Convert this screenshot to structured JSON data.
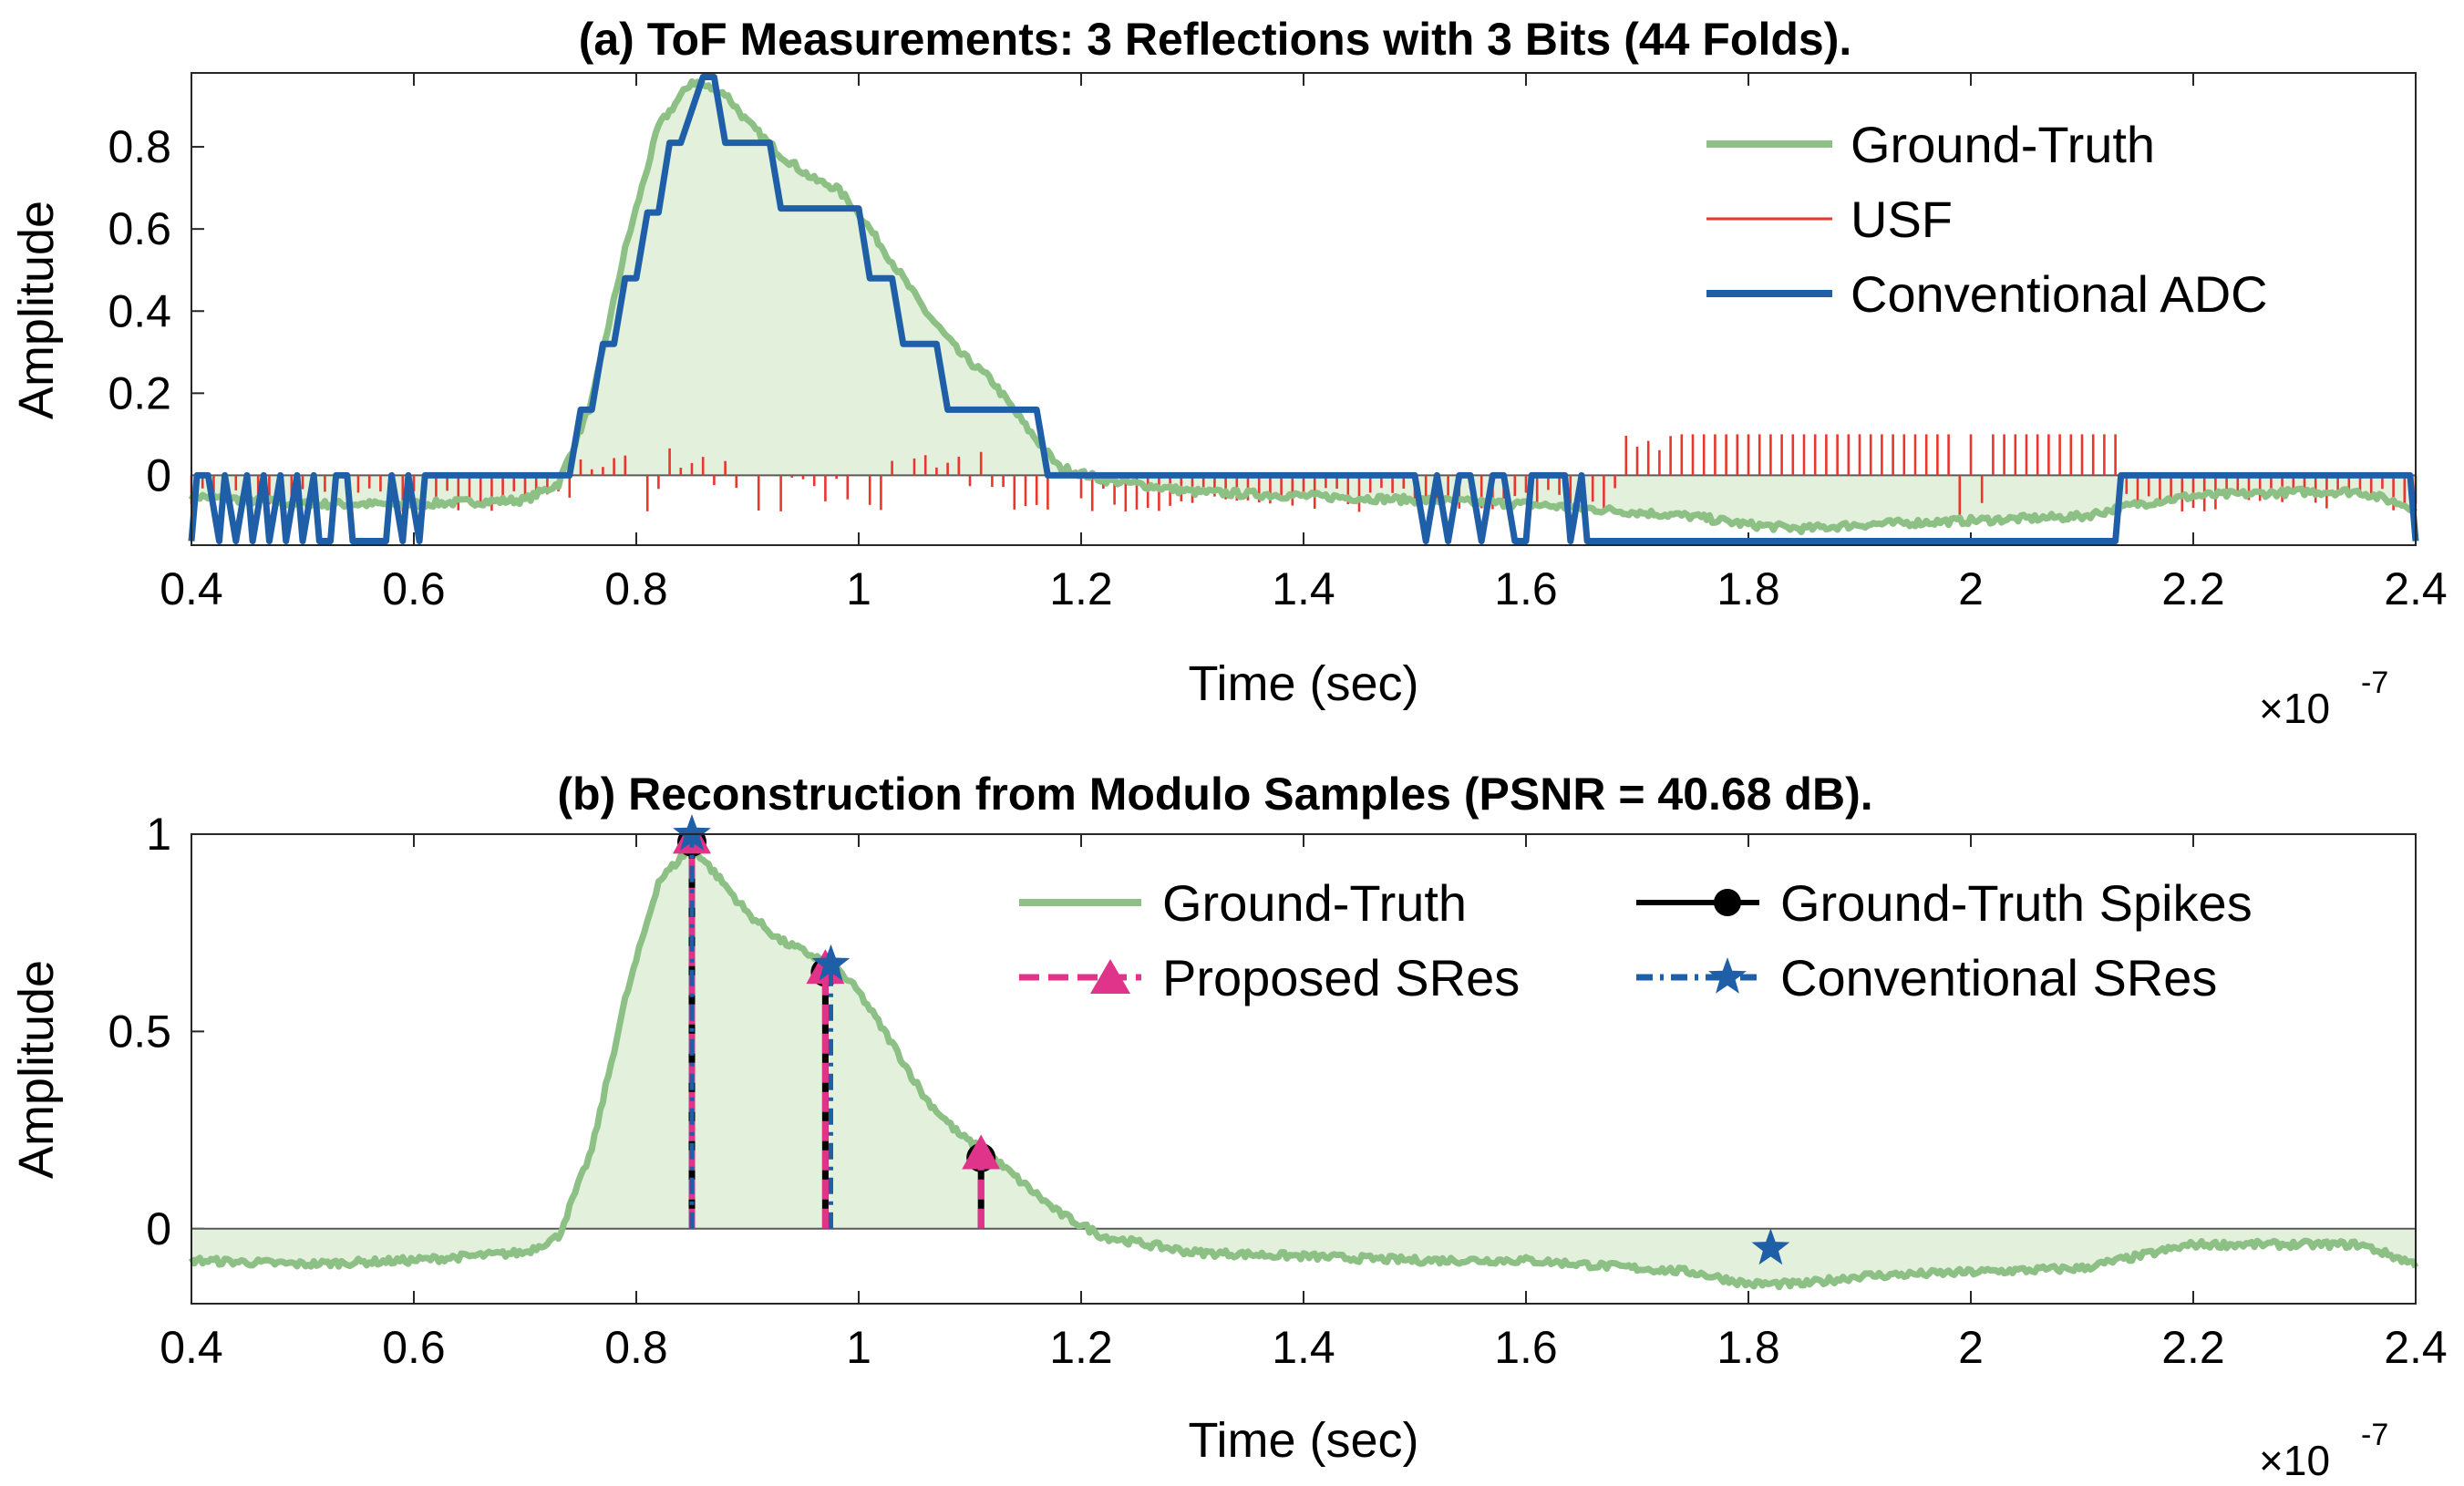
{
  "colors": {
    "ground_truth": "#8cc084",
    "ground_truth_fill": "#e2f0dc",
    "usf": "#e8372c",
    "conventional_adc": "#1f5fa8",
    "spikes": "#000000",
    "proposed": "#e0338a",
    "conventional_sres": "#1f5fa8"
  },
  "chart_data": [
    {
      "type": "line",
      "title": "(a) ToF Measurements: 3 Reflections with 3 Bits (44 Folds).",
      "xlabel": "Time (sec)",
      "ylabel": "Amplitude",
      "x_multiplier": "×10",
      "x_multiplier_exp": "-7",
      "xlim": [
        0.4,
        2.4
      ],
      "ylim": [
        -0.17,
        0.98
      ],
      "xticks": [
        "0.4",
        "0.6",
        "0.8",
        "1",
        "1.2",
        "1.4",
        "1.6",
        "1.8",
        "2",
        "2.2",
        "2.4"
      ],
      "yticks": [
        "0",
        "0.2",
        "0.4",
        "0.6",
        "0.8"
      ],
      "legend": [
        "Ground-Truth",
        "USF",
        "Conventional ADC"
      ],
      "legend_position": "top-right",
      "series": [
        {
          "name": "Ground-Truth",
          "x": [
            0.4,
            0.5,
            0.6,
            0.7,
            0.73,
            0.76,
            0.79,
            0.82,
            0.85,
            0.88,
            0.9,
            0.93,
            0.96,
            0.98,
            1.0,
            1.03,
            1.06,
            1.09,
            1.12,
            1.15,
            1.18,
            1.22,
            1.3,
            1.4,
            1.5,
            1.6,
            1.7,
            1.75,
            1.8,
            1.85,
            1.9,
            2.0,
            2.1,
            2.15,
            2.2,
            2.3,
            2.35,
            2.4
          ],
          "y": [
            -0.05,
            -0.07,
            -0.07,
            -0.06,
            -0.02,
            0.18,
            0.55,
            0.85,
            0.96,
            0.93,
            0.86,
            0.78,
            0.72,
            0.7,
            0.64,
            0.52,
            0.4,
            0.3,
            0.23,
            0.12,
            0.02,
            -0.01,
            -0.04,
            -0.05,
            -0.06,
            -0.07,
            -0.09,
            -0.1,
            -0.12,
            -0.13,
            -0.12,
            -0.11,
            -0.1,
            -0.07,
            -0.05,
            -0.04,
            -0.04,
            -0.08
          ]
        },
        {
          "name": "Conventional ADC",
          "x": [
            0.4,
            0.405,
            0.415,
            0.425,
            0.43,
            0.44,
            0.45,
            0.455,
            0.465,
            0.47,
            0.48,
            0.485,
            0.495,
            0.5,
            0.51,
            0.515,
            0.525,
            0.53,
            0.54,
            0.545,
            0.575,
            0.58,
            0.59,
            0.595,
            0.605,
            0.61,
            0.615,
            0.74,
            0.75,
            0.76,
            0.77,
            0.78,
            0.79,
            0.8,
            0.81,
            0.82,
            0.83,
            0.84,
            0.86,
            0.87,
            0.88,
            0.9,
            0.92,
            0.93,
            0.96,
            0.97,
            1.0,
            1.01,
            1.03,
            1.04,
            1.07,
            1.08,
            1.16,
            1.17,
            1.5,
            1.51,
            1.52,
            1.53,
            1.54,
            1.55,
            1.56,
            1.57,
            1.58,
            1.59,
            1.6,
            1.605,
            1.635,
            1.64,
            1.65,
            1.655,
            2.13,
            2.135,
            2.395,
            2.4
          ],
          "y": [
            -0.16,
            0.0,
            0.0,
            -0.16,
            0.0,
            -0.16,
            0.0,
            -0.16,
            0.0,
            -0.16,
            0.0,
            -0.16,
            0.0,
            -0.16,
            0.0,
            -0.16,
            -0.16,
            0.0,
            0.0,
            -0.16,
            -0.16,
            0.0,
            -0.16,
            0.0,
            -0.16,
            0.0,
            0.0,
            0.0,
            0.16,
            0.16,
            0.32,
            0.32,
            0.48,
            0.48,
            0.64,
            0.64,
            0.81,
            0.81,
            0.97,
            0.97,
            0.81,
            0.81,
            0.81,
            0.65,
            0.65,
            0.65,
            0.65,
            0.48,
            0.48,
            0.32,
            0.32,
            0.16,
            0.16,
            0.0,
            0.0,
            -0.16,
            0.0,
            -0.16,
            0.0,
            0.0,
            -0.16,
            0.0,
            0.0,
            -0.16,
            -0.16,
            0.0,
            0.0,
            -0.16,
            0.0,
            -0.16,
            -0.16,
            0.0,
            0.0,
            -0.16
          ]
        }
      ]
    },
    {
      "type": "line",
      "title": "(b) Reconstruction from Modulo Samples (PSNR = 40.68 dB).",
      "xlabel": "Time (sec)",
      "ylabel": "Amplitude",
      "x_multiplier": "×10",
      "x_multiplier_exp": "-7",
      "xlim": [
        0.4,
        2.4
      ],
      "ylim": [
        -0.19,
        1.0
      ],
      "xticks": [
        "0.4",
        "0.6",
        "0.8",
        "1",
        "1.2",
        "1.4",
        "1.6",
        "1.8",
        "2",
        "2.2",
        "2.4"
      ],
      "yticks": [
        "0",
        "0.5",
        "1"
      ],
      "legend": [
        "Ground-Truth",
        "Ground-Truth Spikes",
        "Proposed SRes",
        "Conventional SRes"
      ],
      "legend_position": "top-right",
      "series": [
        {
          "name": "Ground-Truth",
          "x": [
            0.4,
            0.5,
            0.6,
            0.7,
            0.73,
            0.76,
            0.79,
            0.82,
            0.85,
            0.88,
            0.9,
            0.93,
            0.96,
            0.98,
            1.0,
            1.03,
            1.06,
            1.09,
            1.12,
            1.15,
            1.18,
            1.22,
            1.3,
            1.4,
            1.5,
            1.6,
            1.7,
            1.75,
            1.8,
            1.85,
            1.9,
            2.0,
            2.1,
            2.15,
            2.2,
            2.3,
            2.35,
            2.4
          ],
          "y": [
            -0.08,
            -0.09,
            -0.08,
            -0.06,
            -0.02,
            0.2,
            0.58,
            0.88,
            0.97,
            0.87,
            0.8,
            0.73,
            0.69,
            0.66,
            0.6,
            0.47,
            0.33,
            0.24,
            0.18,
            0.11,
            0.04,
            -0.02,
            -0.06,
            -0.07,
            -0.08,
            -0.08,
            -0.1,
            -0.11,
            -0.14,
            -0.14,
            -0.12,
            -0.11,
            -0.1,
            -0.07,
            -0.04,
            -0.04,
            -0.04,
            -0.09
          ]
        },
        {
          "name": "Ground-Truth Spikes",
          "x": [
            0.85,
            0.97,
            1.11
          ],
          "y": [
            0.98,
            0.65,
            0.18
          ]
        },
        {
          "name": "Proposed SRes",
          "x": [
            0.85,
            0.97,
            1.11
          ],
          "y": [
            0.99,
            0.66,
            0.19
          ]
        },
        {
          "name": "Conventional SRes",
          "x": [
            0.85,
            0.975,
            1.82
          ],
          "y": [
            1.0,
            0.67,
            -0.05
          ]
        }
      ]
    }
  ]
}
